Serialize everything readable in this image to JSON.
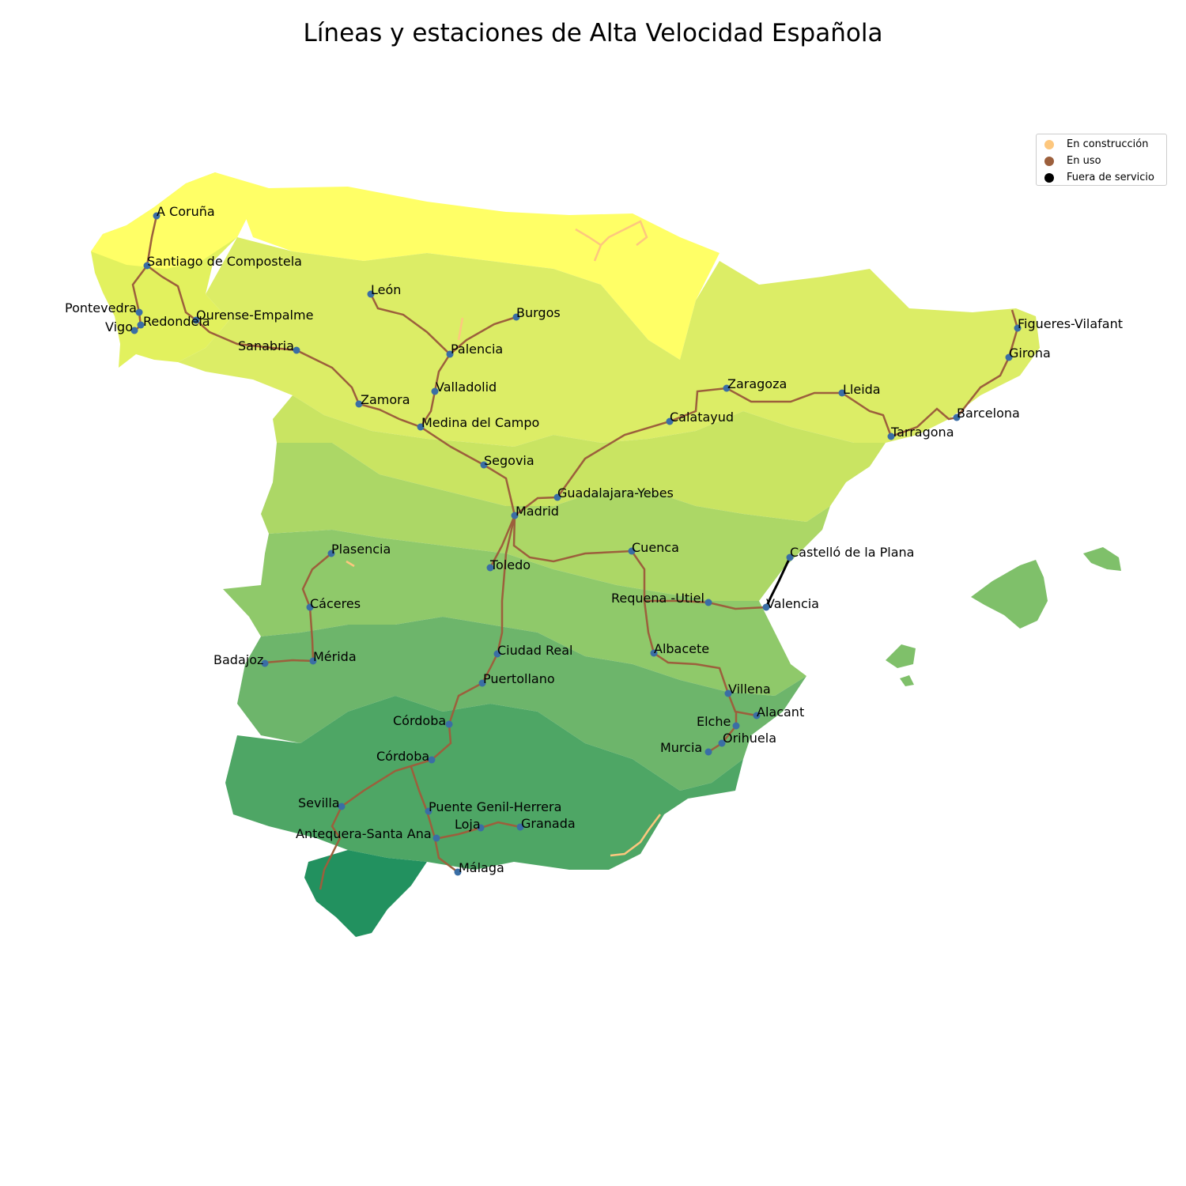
{
  "title": "Líneas y estaciones de Alta Velocidad Española",
  "colors": {
    "en_construccion": "#fdc77e",
    "en_uso": "#9c5f3c",
    "fuera_de_servicio": "#000000",
    "station": "#3a6ea5"
  },
  "legend": [
    {
      "label": "En construcción",
      "color": "#fdc77e"
    },
    {
      "label": "En uso",
      "color": "#9c5f3c"
    },
    {
      "label": "Fuera de servicio",
      "color": "#000000"
    }
  ],
  "stations": [
    "A Coruña",
    "Santiago de Compostela",
    "Pontevedra",
    "Vigo",
    "Redondela",
    "Ourense-Empalme",
    "Sanabria",
    "León",
    "Burgos",
    "Palencia",
    "Valladolid",
    "Zamora",
    "Medina del Campo",
    "Segovia",
    "Madrid",
    "Guadalajara-Yebes",
    "Calatayud",
    "Zaragoza",
    "Lleida",
    "Tarragona",
    "Barcelona",
    "Girona",
    "Figueres-Vilafant",
    "Castelló de la Plana",
    "Valencia",
    "Requena -Utiel",
    "Cuenca",
    "Toledo",
    "Plasencia",
    "Cáceres",
    "Mérida",
    "Badajoz",
    "Ciudad Real",
    "Puertollano",
    "Córdoba",
    "Córdoba",
    "Albacete",
    "Villena",
    "Alacant",
    "Elche",
    "Orihuela",
    "Murcia",
    "Sevilla",
    "Puente Genil-Herrera",
    "Loja",
    "Granada",
    "Antequera-Santa Ana",
    "Málaga"
  ]
}
